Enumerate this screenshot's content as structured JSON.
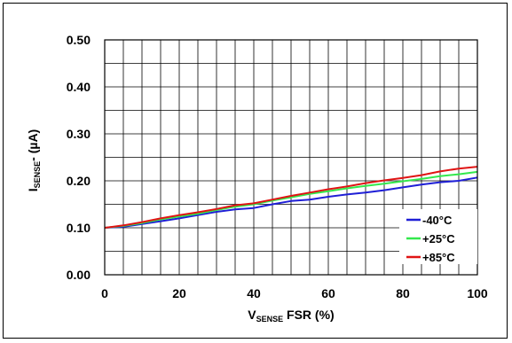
{
  "chart_data": {
    "type": "line",
    "xlabel": {
      "main": "V",
      "sub": "SENSE",
      "rest": " FSR (%)"
    },
    "ylabel": {
      "main": "I",
      "sub": "SENSE",
      "rest": "- (µA)"
    },
    "xlim": [
      0,
      100
    ],
    "ylim": [
      0,
      0.5
    ],
    "xticks": [
      "0",
      "20",
      "40",
      "60",
      "80",
      "100"
    ],
    "yticks": [
      "0.00",
      "0.10",
      "0.20",
      "0.30",
      "0.40",
      "0.50"
    ],
    "grid": true,
    "legend_position": "bottom-right",
    "x": [
      0,
      5,
      10,
      15,
      20,
      25,
      30,
      35,
      40,
      45,
      50,
      55,
      60,
      65,
      70,
      75,
      80,
      85,
      90,
      95,
      100
    ],
    "series": [
      {
        "name": "-40°C",
        "color": "#1f1fd6",
        "values": [
          0.1,
          0.102,
          0.108,
          0.114,
          0.12,
          0.127,
          0.134,
          0.139,
          0.142,
          0.15,
          0.157,
          0.16,
          0.166,
          0.171,
          0.175,
          0.18,
          0.186,
          0.192,
          0.197,
          0.2,
          0.207
        ]
      },
      {
        "name": "+25°C",
        "color": "#33e84d",
        "values": [
          0.1,
          0.104,
          0.11,
          0.118,
          0.124,
          0.13,
          0.138,
          0.145,
          0.15,
          0.158,
          0.165,
          0.172,
          0.178,
          0.184,
          0.189,
          0.194,
          0.199,
          0.204,
          0.21,
          0.214,
          0.219
        ]
      },
      {
        "name": "+85°C",
        "color": "#e01414",
        "values": [
          0.1,
          0.105,
          0.112,
          0.12,
          0.127,
          0.133,
          0.14,
          0.148,
          0.152,
          0.16,
          0.168,
          0.175,
          0.182,
          0.188,
          0.195,
          0.201,
          0.206,
          0.212,
          0.22,
          0.226,
          0.23
        ]
      }
    ]
  }
}
